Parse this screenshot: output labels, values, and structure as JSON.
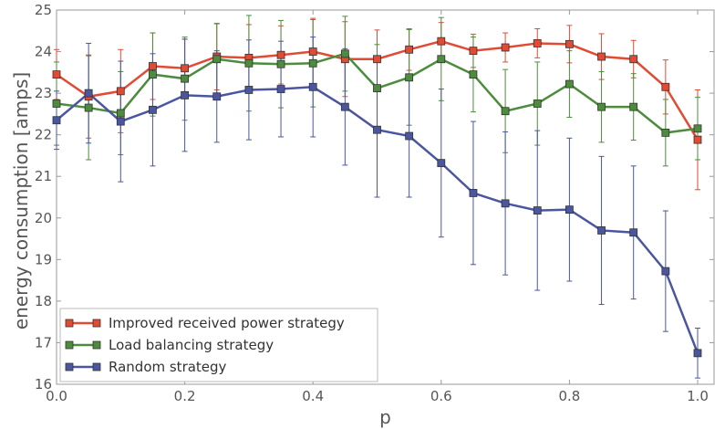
{
  "chart_data": {
    "type": "line",
    "title": "",
    "xlabel": "p",
    "ylabel": "energy consumption [amps]",
    "xlim": [
      0.0,
      1.0
    ],
    "ylim": [
      16,
      25
    ],
    "xticks": [
      "0.0",
      "0.2",
      "0.4",
      "0.6",
      "0.8",
      "1.0"
    ],
    "yticks": [
      "16",
      "17",
      "18",
      "19",
      "20",
      "21",
      "22",
      "23",
      "24",
      "25"
    ],
    "grid": false,
    "legend_position": "bottom-left",
    "x": [
      0.0,
      0.05,
      0.1,
      0.15,
      0.2,
      0.25,
      0.3,
      0.35,
      0.4,
      0.45,
      0.5,
      0.55,
      0.6,
      0.65,
      0.7,
      0.75,
      0.8,
      0.85,
      0.9,
      0.95,
      1.0
    ],
    "series": [
      {
        "name": "Improved received power strategy",
        "color": "#e24a33",
        "values": [
          23.45,
          22.92,
          23.05,
          23.65,
          23.6,
          23.88,
          23.85,
          23.92,
          24.0,
          23.82,
          23.82,
          24.05,
          24.25,
          24.02,
          24.1,
          24.2,
          24.18,
          23.88,
          23.82,
          23.15,
          21.88
        ],
        "errors": [
          0.6,
          1.0,
          1.0,
          0.8,
          0.7,
          0.8,
          0.8,
          0.7,
          0.8,
          0.9,
          0.7,
          0.5,
          0.45,
          0.4,
          0.35,
          0.35,
          0.45,
          0.55,
          0.45,
          0.65,
          1.2
        ]
      },
      {
        "name": "Load balancing strategy",
        "color": "#4c8c3c",
        "values": [
          22.75,
          22.65,
          22.52,
          23.45,
          23.35,
          23.82,
          23.72,
          23.7,
          23.72,
          23.95,
          23.12,
          23.38,
          23.82,
          23.45,
          22.57,
          22.75,
          23.22,
          22.67,
          22.67,
          22.05,
          22.15
        ],
        "errors": [
          1.0,
          1.25,
          1.0,
          1.0,
          1.0,
          0.85,
          1.15,
          1.05,
          1.05,
          0.9,
          1.05,
          1.15,
          1.0,
          0.9,
          1.0,
          1.0,
          0.8,
          0.85,
          0.8,
          0.8,
          0.75
        ]
      },
      {
        "name": "Random strategy",
        "color": "#4a56a0",
        "values": [
          22.35,
          23.0,
          22.32,
          22.6,
          22.95,
          22.92,
          23.08,
          23.1,
          23.15,
          22.67,
          22.12,
          21.97,
          21.32,
          20.6,
          20.35,
          20.18,
          20.2,
          19.7,
          19.65,
          18.72,
          16.75
        ],
        "errors": [
          0.7,
          1.2,
          1.45,
          1.35,
          1.35,
          1.1,
          1.2,
          1.15,
          1.2,
          1.4,
          1.62,
          1.47,
          1.78,
          1.72,
          1.72,
          1.92,
          1.72,
          1.78,
          1.6,
          1.45,
          0.6
        ]
      }
    ]
  }
}
